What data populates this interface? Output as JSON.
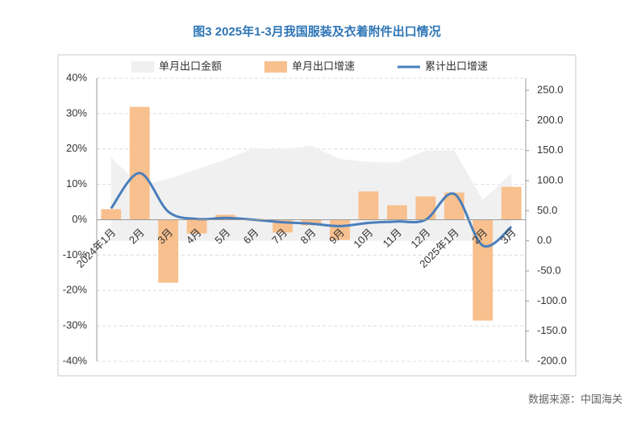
{
  "chart_data": {
    "type": "combo",
    "title": "图3 2025年1-3月我国服装及衣着附件出口情况",
    "source": "数据来源：中国海关",
    "categories": [
      "2024年1月",
      "2月",
      "3月",
      "4月",
      "5月",
      "6月",
      "7月",
      "8月",
      "9月",
      "10月",
      "11月",
      "12月",
      "2025年1月",
      "2月",
      "3月"
    ],
    "series": [
      {
        "name": "单月出口金额",
        "kind": "area",
        "axis": "y2",
        "color": "#f0f0f0",
        "values": [
          139,
          92,
          103,
          119,
          135,
          154,
          152,
          158,
          136,
          131,
          130,
          150,
          150,
          68,
          112
        ]
      },
      {
        "name": "单月出口增速",
        "kind": "bar",
        "color": "#f8c08e",
        "values": [
          3.0,
          31.9,
          -17.8,
          -3.9,
          1.4,
          0.2,
          -3.6,
          -1.6,
          -5.7,
          8.0,
          4.1,
          6.6,
          7.7,
          -28.5,
          9.3
        ]
      },
      {
        "name": "累计出口增速",
        "kind": "line",
        "color": "#4a7ebb",
        "values": [
          3.2,
          13.2,
          2.3,
          0.2,
          0.5,
          0.0,
          -0.7,
          -1.1,
          -1.8,
          -0.9,
          -0.5,
          0.0,
          7.3,
          -7.3,
          -2.0
        ]
      }
    ],
    "ylim": [
      -40,
      40
    ],
    "yticks": [
      {
        "value": -40,
        "label": "-40%"
      },
      {
        "value": -30,
        "label": "-30%"
      },
      {
        "value": -20,
        "label": "-20%"
      },
      {
        "value": -10,
        "label": "-10%"
      },
      {
        "value": 0,
        "label": "0%"
      },
      {
        "value": 10,
        "label": "10%"
      },
      {
        "value": 20,
        "label": "20%"
      },
      {
        "value": 30,
        "label": "30%"
      },
      {
        "value": 40,
        "label": "40%"
      }
    ],
    "y2lim": [
      -200,
      250
    ],
    "y2ticks": [
      {
        "value": -200,
        "label": "-200.0"
      },
      {
        "value": -150,
        "label": "-150.0"
      },
      {
        "value": -100,
        "label": "-100.0"
      },
      {
        "value": -50,
        "label": "-50.0"
      },
      {
        "value": 0,
        "label": "0.0"
      },
      {
        "value": 50,
        "label": "50.0"
      },
      {
        "value": 100,
        "label": "100.0"
      },
      {
        "value": 150,
        "label": "150.0"
      },
      {
        "value": 200,
        "label": "200.0"
      },
      {
        "value": 250,
        "label": "250.0"
      }
    ],
    "grid": true,
    "legend": "top"
  }
}
